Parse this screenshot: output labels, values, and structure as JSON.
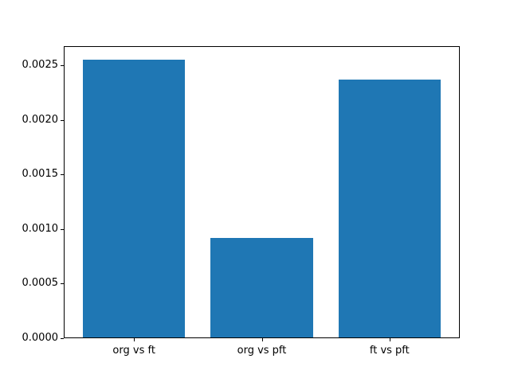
{
  "figure": {
    "background_color": "#ffffff",
    "frame_color": "#000000",
    "text_color": "#000000"
  },
  "chart_data": {
    "type": "bar",
    "categories": [
      "org vs ft",
      "org vs pft",
      "ft vs pft"
    ],
    "values": [
      0.00255,
      0.00092,
      0.00237
    ],
    "title": "",
    "xlabel": "",
    "ylabel": "",
    "ylim": [
      0,
      0.0026775
    ],
    "yticks": [
      0.0,
      0.0005,
      0.001,
      0.0015,
      0.002,
      0.0025
    ],
    "ytick_labels": [
      "0.0000",
      "0.0005",
      "0.0010",
      "0.0015",
      "0.0020",
      "0.0025"
    ],
    "bar_color": "#1f77b4",
    "bar_width_fraction": 0.8,
    "grid": false,
    "legend_position": "none"
  }
}
